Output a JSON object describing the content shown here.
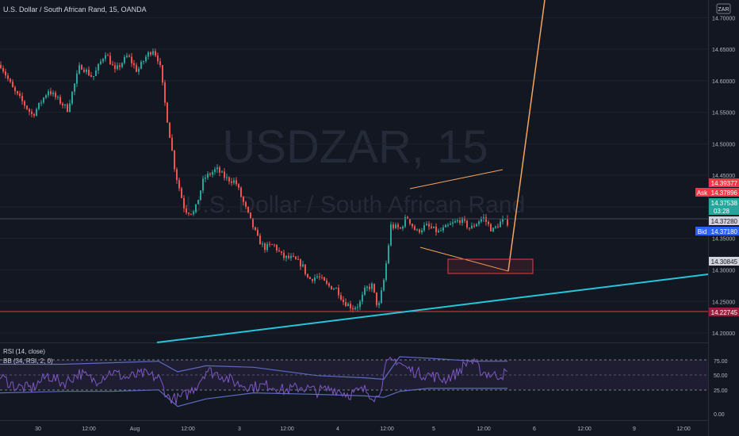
{
  "header": {
    "title": "U.S. Dollar / South African Rand, 15, OANDA",
    "currency_badge": "ZAR"
  },
  "watermark": {
    "symbol": "USDZAR, 15",
    "name": "U.S. Dollar / South African Rand"
  },
  "colors": {
    "background": "#131722",
    "up": "#26a69a",
    "down": "#ef5350",
    "trendline": "#26c6da",
    "pattern": "#f5a45b",
    "support": "#f23645",
    "rsi": "#7e57c2",
    "bb": "#5c6bc0"
  },
  "price_axis": {
    "ticks": [
      "14.70000",
      "14.65000",
      "14.60000",
      "14.55000",
      "14.50000",
      "14.45000",
      "14.40000",
      "14.35000",
      "14.30000",
      "14.25000",
      "14.20000"
    ],
    "tick_values": [
      14.7,
      14.65,
      14.6,
      14.55,
      14.5,
      14.45,
      14.4,
      14.35,
      14.3,
      14.25,
      14.2
    ],
    "range": [
      14.185,
      14.728
    ]
  },
  "price_labels": {
    "high": "14.39377",
    "ask_tag": "Ask",
    "ask": "14.37896",
    "last": "14.37538",
    "countdown": "03:28",
    "low": "14.37280",
    "bid_tag": "Bid",
    "bid": "14.37180",
    "target": "14.30845",
    "support": "14.22745"
  },
  "time_axis": {
    "labels": [
      "30",
      "12:00",
      "Aug",
      "12:00",
      "3",
      "12:00",
      "4",
      "12:00",
      "5",
      "12:00",
      "6",
      "12:00",
      "9",
      "12:00"
    ]
  },
  "rsi_panel": {
    "title1": "RSI (14, close)",
    "title2": "BB (34, RSI, 2, 0)",
    "ticks": [
      "75.00",
      "50.00",
      "25.00",
      "0.00"
    ],
    "tick_values": [
      75,
      50,
      25,
      0
    ],
    "bands": [
      70,
      30
    ]
  },
  "chart_data": {
    "type": "candlestick",
    "symbol": "USDZAR",
    "interval": "15",
    "source": "OANDA",
    "price_range": [
      14.185,
      14.728
    ],
    "key_levels": {
      "support": 14.22745,
      "target_box": [
        14.297,
        14.317
      ]
    },
    "path_points": [
      [
        0,
        14.625
      ],
      [
        0.04,
        14.585
      ],
      [
        0.1,
        14.545
      ],
      [
        0.15,
        14.585
      ],
      [
        0.21,
        14.555
      ],
      [
        0.25,
        14.625
      ],
      [
        0.29,
        14.605
      ],
      [
        0.33,
        14.645
      ],
      [
        0.36,
        14.615
      ],
      [
        0.4,
        14.64
      ],
      [
        0.43,
        14.615
      ],
      [
        0.46,
        14.64
      ],
      [
        0.48,
        14.65
      ],
      [
        0.5,
        14.63
      ],
      [
        0.52,
        14.555
      ],
      [
        0.55,
        14.455
      ],
      [
        0.58,
        14.395
      ],
      [
        0.61,
        14.39
      ],
      [
        0.64,
        14.445
      ],
      [
        0.68,
        14.46
      ],
      [
        0.71,
        14.445
      ],
      [
        0.74,
        14.44
      ],
      [
        0.77,
        14.4
      ],
      [
        0.79,
        14.375
      ],
      [
        0.81,
        14.35
      ],
      [
        0.83,
        14.335
      ],
      [
        0.86,
        14.34
      ],
      [
        0.89,
        14.32
      ],
      [
        0.92,
        14.318
      ],
      [
        0.95,
        14.308
      ],
      [
        0.97,
        14.285
      ],
      [
        1.0,
        14.29
      ],
      [
        1.03,
        14.275
      ],
      [
        1.06,
        14.27
      ],
      [
        1.08,
        14.25
      ],
      [
        1.11,
        14.24
      ],
      [
        1.13,
        14.245
      ],
      [
        1.15,
        14.27
      ],
      [
        1.17,
        14.275
      ],
      [
        1.19,
        14.238
      ],
      [
        1.21,
        14.29
      ],
      [
        1.23,
        14.37
      ],
      [
        1.26,
        14.365
      ],
      [
        1.28,
        14.385
      ],
      [
        1.31,
        14.36
      ],
      [
        1.34,
        14.37
      ],
      [
        1.38,
        14.36
      ],
      [
        1.42,
        14.372
      ],
      [
        1.45,
        14.38
      ],
      [
        1.48,
        14.365
      ],
      [
        1.52,
        14.384
      ],
      [
        1.55,
        14.362
      ],
      [
        1.58,
        14.378
      ],
      [
        1.6,
        14.375
      ]
    ],
    "rsi_points": [
      [
        0,
        54
      ],
      [
        0.05,
        40
      ],
      [
        0.1,
        38
      ],
      [
        0.15,
        55
      ],
      [
        0.2,
        45
      ],
      [
        0.25,
        58
      ],
      [
        0.3,
        48
      ],
      [
        0.35,
        60
      ],
      [
        0.4,
        52
      ],
      [
        0.45,
        57
      ],
      [
        0.5,
        52
      ],
      [
        0.53,
        26
      ],
      [
        0.56,
        24
      ],
      [
        0.59,
        30
      ],
      [
        0.62,
        42
      ],
      [
        0.65,
        62
      ],
      [
        0.7,
        55
      ],
      [
        0.75,
        44
      ],
      [
        0.8,
        40
      ],
      [
        0.85,
        42
      ],
      [
        0.9,
        35
      ],
      [
        0.95,
        40
      ],
      [
        1.0,
        34
      ],
      [
        1.05,
        38
      ],
      [
        1.1,
        30
      ],
      [
        1.15,
        36
      ],
      [
        1.19,
        25
      ],
      [
        1.22,
        70
      ],
      [
        1.25,
        76
      ],
      [
        1.28,
        65
      ],
      [
        1.32,
        58
      ],
      [
        1.36,
        55
      ],
      [
        1.4,
        50
      ],
      [
        1.44,
        58
      ],
      [
        1.48,
        76
      ],
      [
        1.52,
        60
      ],
      [
        1.56,
        55
      ],
      [
        1.6,
        58
      ]
    ],
    "bb_upper": [
      [
        0,
        70
      ],
      [
        0.2,
        70
      ],
      [
        0.35,
        72
      ],
      [
        0.5,
        74
      ],
      [
        0.56,
        60
      ],
      [
        0.65,
        68
      ],
      [
        0.8,
        66
      ],
      [
        1.0,
        55
      ],
      [
        1.15,
        52
      ],
      [
        1.21,
        50
      ],
      [
        1.26,
        80
      ],
      [
        1.35,
        78
      ],
      [
        1.5,
        74
      ],
      [
        1.6,
        74
      ]
    ],
    "bb_lower": [
      [
        0,
        32
      ],
      [
        0.2,
        34
      ],
      [
        0.35,
        34
      ],
      [
        0.5,
        36
      ],
      [
        0.56,
        14
      ],
      [
        0.65,
        24
      ],
      [
        0.8,
        32
      ],
      [
        1.0,
        30
      ],
      [
        1.15,
        28
      ],
      [
        1.21,
        26
      ],
      [
        1.26,
        34
      ],
      [
        1.35,
        38
      ],
      [
        1.5,
        38
      ],
      [
        1.6,
        38
      ]
    ]
  }
}
